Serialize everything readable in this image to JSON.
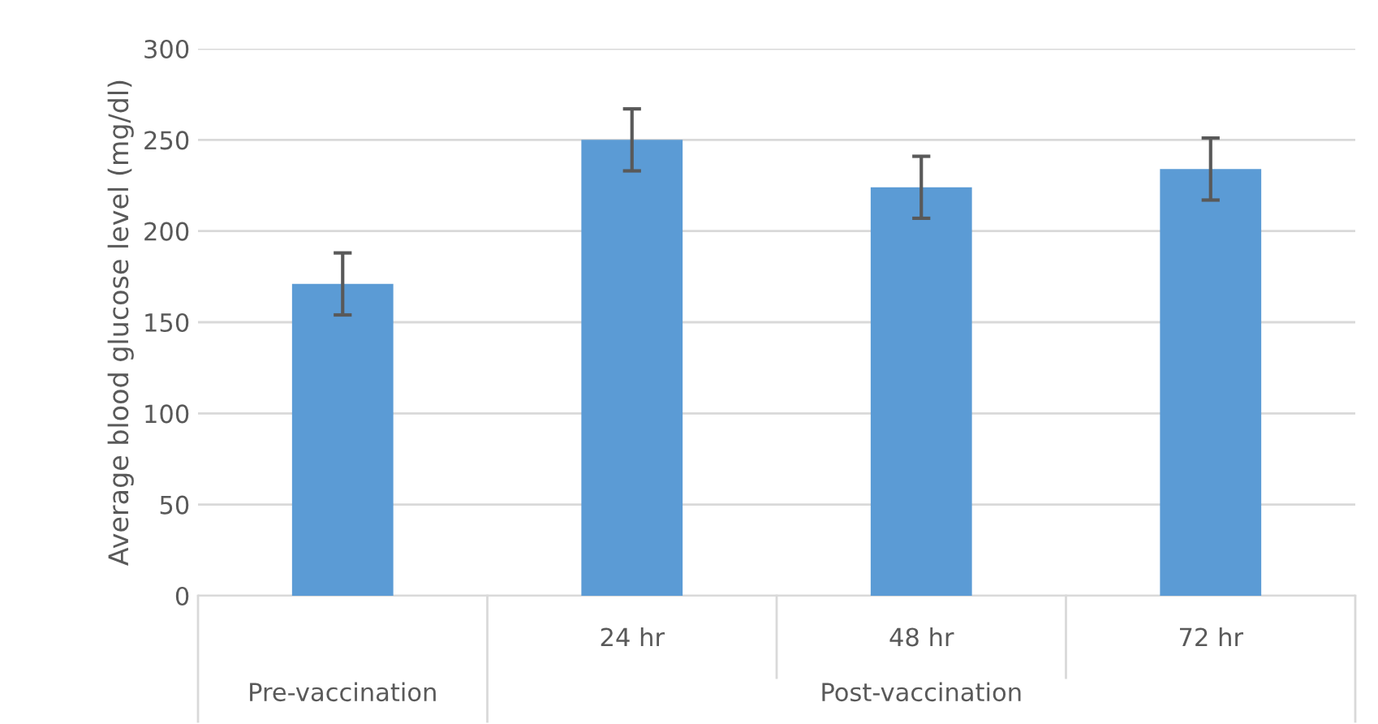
{
  "chart_data": {
    "type": "bar",
    "ylabel": "Average blood glucose level (mg/dl)",
    "categories": [
      null,
      "24 hr",
      "48 hr",
      "72 hr"
    ],
    "values": [
      171,
      250,
      224,
      234
    ],
    "errors": [
      17,
      17,
      17,
      17
    ],
    "color": "#5b9bd5",
    "ylim": [
      0,
      300
    ],
    "yticks": [
      0,
      50,
      100,
      150,
      200,
      250,
      300
    ],
    "grid": "y",
    "annotations": [
      "Pre-vaccination",
      "Post-vaccination"
    ]
  }
}
